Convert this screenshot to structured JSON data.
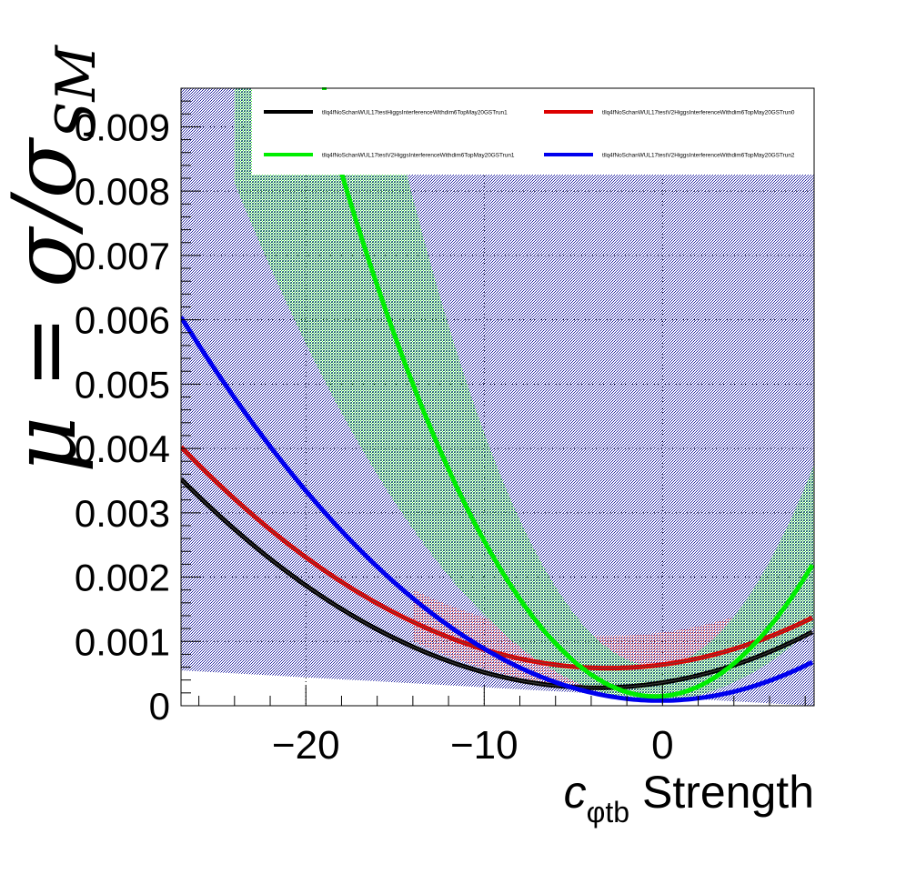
{
  "chart_data": {
    "type": "line",
    "title": "",
    "xlabel": {
      "main": "c",
      "subscript": "φtb",
      "suffix": " Strength"
    },
    "ylabel": {
      "mu": "μ",
      "eq": " = σ/σ",
      "subscript": "SM"
    },
    "xlim": [
      -27,
      8.5
    ],
    "ylim": [
      0,
      0.0096
    ],
    "grid": true,
    "legend_placement": "top",
    "x_ticks": [
      -20,
      -10,
      0
    ],
    "x_tick_labels": [
      "−20",
      "−10",
      "0"
    ],
    "y_ticks": [
      0,
      0.001,
      0.002,
      0.003,
      0.004,
      0.005,
      0.006,
      0.007,
      0.008,
      0.009
    ],
    "y_tick_labels": [
      "0",
      "0.001",
      "0.002",
      "0.003",
      "0.004",
      "0.005",
      "0.006",
      "0.007",
      "0.008",
      "0.009"
    ],
    "series": [
      {
        "name": "tllq4fNoSchanWUL17testHiggsInterferenceWithdim6TopMay20GSTrun1",
        "color": "#000000",
        "center_color": "#555555",
        "quadratic": {
          "a": 5.96e-06,
          "b": 4.37e-05,
          "c": 0.00036
        },
        "band": {
          "color": "#00008b",
          "lower": [
            [
              -27,
              0.00055
            ],
            [
              8.5,
              0.0
            ]
          ],
          "upper_const": 0.0096
        }
      },
      {
        "name": "tllq4fNoSchanWUL17testV2HiggsInterferenceWithdim6TopMay20GSTrun0",
        "color": "#dd0000",
        "center_color": "#555555",
        "quadratic": {
          "a": 5.99e-06,
          "b": 3.64e-05,
          "c": 0.00064
        },
        "band": {
          "color": "#dd0000",
          "range": [
            -14,
            7
          ],
          "half_width": 0.0005
        }
      },
      {
        "name": "tllq4fNoSchanWUL17testV2HiggsInterferenceWithdim6TopMay20GSTrun1",
        "color": "#00ee00",
        "quadratic": {
          "a": 2.63e-05,
          "b": 2.17e-05,
          "c": 0.00015
        },
        "band": {
          "color": "#33dd33",
          "x_from": -24,
          "frac_low": 0.55,
          "frac_high": 1.5
        }
      },
      {
        "name": "tllq4fNoSchanWUL17testV2HiggsInterferenceWithdim6TopMay20GSTrun2",
        "color": "#0000ee",
        "quadratic": {
          "a": 8.25e-06,
          "b": 1.9e-06,
          "c": 8e-05
        },
        "band": null
      }
    ]
  }
}
